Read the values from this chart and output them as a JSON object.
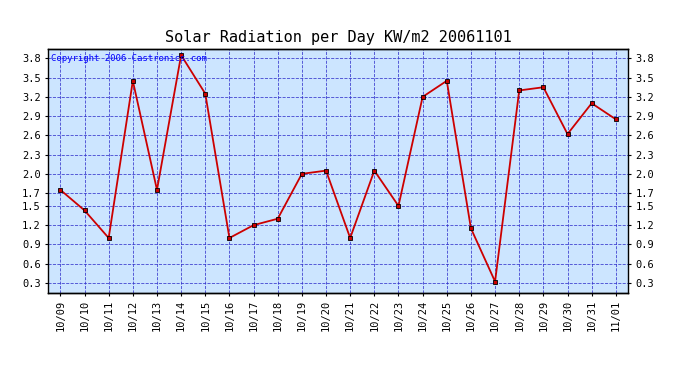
{
  "title": "Solar Radiation per Day KW/m2 20061101",
  "copyright_text": "Copyright 2006 Castronics.com",
  "dates": [
    "10/09",
    "10/10",
    "10/11",
    "10/12",
    "10/13",
    "10/14",
    "10/15",
    "10/16",
    "10/17",
    "10/18",
    "10/19",
    "10/20",
    "10/21",
    "10/22",
    "10/23",
    "10/24",
    "10/25",
    "10/26",
    "10/27",
    "10/28",
    "10/29",
    "10/30",
    "10/31",
    "11/01"
  ],
  "values": [
    1.75,
    1.43,
    1.0,
    3.45,
    1.75,
    3.85,
    3.25,
    1.0,
    1.2,
    1.3,
    2.0,
    2.05,
    1.0,
    2.05,
    1.5,
    3.2,
    3.45,
    1.15,
    0.32,
    3.3,
    3.35,
    2.62,
    3.1,
    2.85
  ],
  "line_color": "#cc0000",
  "marker_color": "#000000",
  "plot_bg_color": "#cce5ff",
  "grid_color": "#3333cc",
  "ylim_min": 0.15,
  "ylim_max": 3.95,
  "yticks": [
    0.3,
    0.6,
    0.9,
    1.2,
    1.5,
    1.7,
    2.0,
    2.3,
    2.6,
    2.9,
    3.2,
    3.5,
    3.8
  ],
  "ytick_labels": [
    "0.3",
    "0.6",
    "0.9",
    "1.2",
    "1.5",
    "1.7",
    "2.0",
    "2.3",
    "2.6",
    "2.9",
    "3.2",
    "3.5",
    "3.8"
  ],
  "title_fontsize": 11,
  "copyright_fontsize": 6.5,
  "tick_fontsize": 7.5
}
